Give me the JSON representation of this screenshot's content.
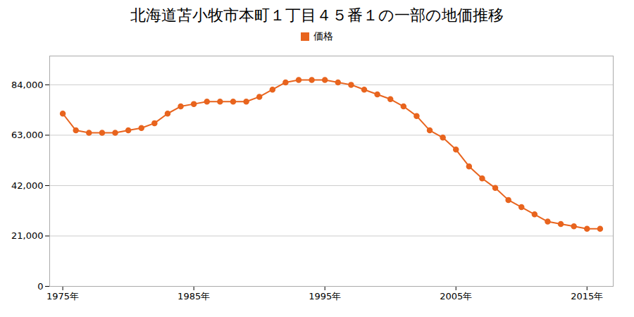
{
  "chart_data": {
    "type": "line",
    "title": "北海道苫小牧市本町１丁目４５番１の一部の地価推移",
    "x": [
      1975,
      1976,
      1977,
      1978,
      1979,
      1980,
      1981,
      1982,
      1983,
      1984,
      1985,
      1986,
      1987,
      1988,
      1989,
      1990,
      1991,
      1992,
      1993,
      1994,
      1995,
      1996,
      1997,
      1998,
      1999,
      2000,
      2001,
      2002,
      2003,
      2004,
      2005,
      2006,
      2007,
      2008,
      2009,
      2010,
      2011,
      2012,
      2013,
      2014,
      2015,
      2016
    ],
    "series": [
      {
        "name": "価格",
        "color": "#E8641E",
        "marker": "circle",
        "values": [
          72000,
          65000,
          64000,
          64000,
          64000,
          65000,
          66000,
          68000,
          72000,
          75000,
          76000,
          77000,
          77000,
          77000,
          77000,
          79000,
          82000,
          85000,
          86000,
          86000,
          86000,
          85000,
          84000,
          82000,
          80000,
          78000,
          75000,
          71000,
          65000,
          62000,
          57000,
          50000,
          45000,
          41000,
          36000,
          33000,
          30000,
          27000,
          26000,
          25000,
          24000,
          24000
        ]
      }
    ],
    "xlim": [
      1974,
      2017
    ],
    "xticks": [
      {
        "value": 1975,
        "label": "1975年"
      },
      {
        "value": 1985,
        "label": "1985年"
      },
      {
        "value": 1995,
        "label": "1995年"
      },
      {
        "value": 2005,
        "label": "2005年"
      },
      {
        "value": 2015,
        "label": "2015年"
      }
    ],
    "ylim": [
      0,
      96000
    ],
    "yticks": [
      0,
      {
        "value": 21000,
        "label": "21,000"
      },
      {
        "value": 42000,
        "label": "42,000"
      },
      {
        "value": 63000,
        "label": "63,000"
      },
      {
        "value": 84000,
        "label": "84,000"
      }
    ],
    "grid": true,
    "legend": "top"
  }
}
